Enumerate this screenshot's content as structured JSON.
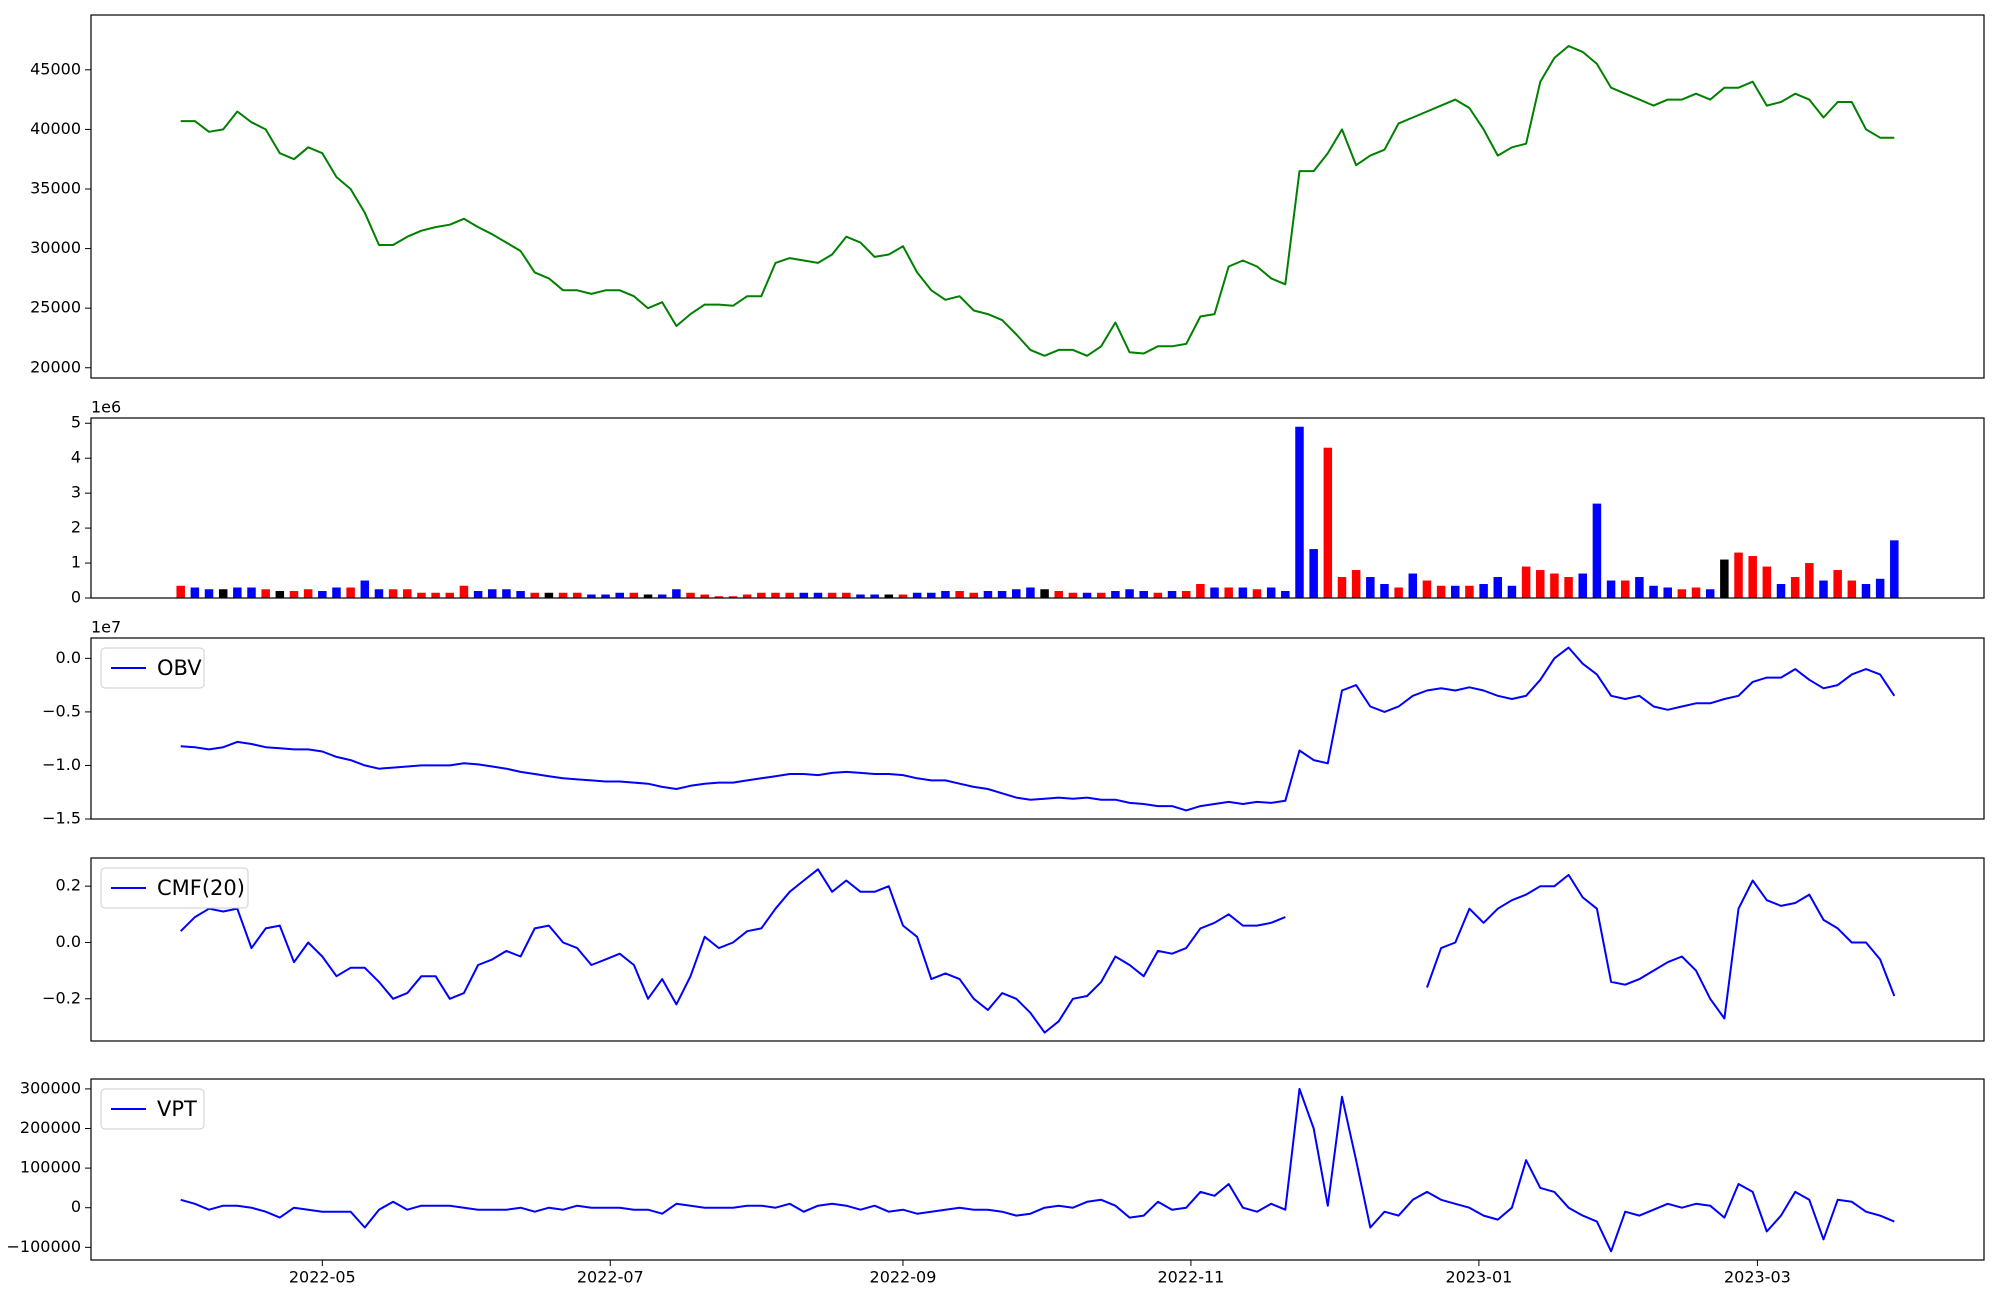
{
  "chart_data": [
    {
      "type": "line",
      "x": [
        "2022-04-01",
        "2022-04-04",
        "2022-04-07",
        "2022-04-10",
        "2022-04-13",
        "2022-04-16",
        "2022-04-19",
        "2022-04-22",
        "2022-04-25",
        "2022-04-28",
        "2022-05-01",
        "2022-05-04",
        "2022-05-07",
        "2022-05-10",
        "2022-05-13",
        "2022-05-16",
        "2022-05-19",
        "2022-05-22",
        "2022-05-25",
        "2022-05-28",
        "2022-05-31",
        "2022-06-03",
        "2022-06-06",
        "2022-06-09",
        "2022-06-12",
        "2022-06-15",
        "2022-06-18",
        "2022-06-21",
        "2022-06-24",
        "2022-06-27",
        "2022-06-30",
        "2022-07-03",
        "2022-07-06",
        "2022-07-09",
        "2022-07-12",
        "2022-07-15",
        "2022-07-18",
        "2022-07-21",
        "2022-07-24",
        "2022-07-27",
        "2022-07-30",
        "2022-08-02",
        "2022-08-05",
        "2022-08-08",
        "2022-08-11",
        "2022-08-14",
        "2022-08-17",
        "2022-08-20",
        "2022-08-23",
        "2022-08-26",
        "2022-08-29",
        "2022-09-01",
        "2022-09-04",
        "2022-09-07",
        "2022-09-10",
        "2022-09-13",
        "2022-09-16",
        "2022-09-19",
        "2022-09-22",
        "2022-09-25",
        "2022-09-28",
        "2022-10-01",
        "2022-10-04",
        "2022-10-07",
        "2022-10-10",
        "2022-10-13",
        "2022-10-16",
        "2022-10-19",
        "2022-10-22",
        "2022-10-25",
        "2022-10-28",
        "2022-10-31",
        "2022-11-03",
        "2022-11-06",
        "2022-11-09",
        "2022-11-12",
        "2022-11-15",
        "2022-11-18",
        "2022-11-21",
        "2022-11-24",
        "2022-11-27",
        "2022-11-30",
        "2022-12-03",
        "2022-12-06",
        "2022-12-09",
        "2022-12-12",
        "2022-12-15",
        "2022-12-18",
        "2022-12-21",
        "2022-12-24",
        "2022-12-27",
        "2022-12-30",
        "2023-01-02",
        "2023-01-05",
        "2023-01-08",
        "2023-01-11",
        "2023-01-14",
        "2023-01-17",
        "2023-01-20",
        "2023-01-23",
        "2023-01-26",
        "2023-01-29",
        "2023-02-01",
        "2023-02-04",
        "2023-02-07",
        "2023-02-10",
        "2023-02-13",
        "2023-02-16",
        "2023-02-19",
        "2023-02-22",
        "2023-02-25",
        "2023-02-28",
        "2023-03-03",
        "2023-03-06",
        "2023-03-09",
        "2023-03-12",
        "2023-03-15",
        "2023-03-18",
        "2023-03-21",
        "2023-03-24",
        "2023-03-27",
        "2023-03-30"
      ],
      "xlim": [
        "2022-03-13",
        "2023-04-18"
      ],
      "series": [
        {
          "color": "green",
          "values": [
            40700,
            40700,
            39800,
            40000,
            41500,
            40600,
            40000,
            38000,
            37500,
            38500,
            38000,
            36000,
            35000,
            33000,
            30300,
            30300,
            31000,
            31500,
            31800,
            32000,
            32500,
            31800,
            31200,
            30500,
            29800,
            28000,
            27500,
            26500,
            26500,
            26200,
            26500,
            26500,
            26000,
            25000,
            25500,
            23500,
            24500,
            25300,
            25300,
            25200,
            26000,
            26000,
            28800,
            29200,
            29000,
            28800,
            29500,
            31000,
            30500,
            29300,
            29500,
            30200,
            28000,
            26500,
            25700,
            26000,
            24800,
            24500,
            24000,
            22800,
            21500,
            21000,
            21500,
            21500,
            21000,
            21800,
            23800,
            21300,
            21200,
            21800,
            21800,
            22000,
            24300,
            24500,
            28500,
            29000,
            28500,
            27500,
            27000,
            36500,
            36500,
            38000,
            40000,
            37000,
            37800,
            38300,
            40500,
            41000,
            41500,
            42000,
            42500,
            41800,
            40000,
            37800,
            38500,
            38800,
            44000,
            46000,
            47000,
            46500,
            45500,
            43500,
            43000,
            42500,
            42000,
            42500,
            42500,
            43000,
            42500,
            43500,
            43500,
            44000,
            42000,
            42300,
            43000,
            42500,
            41000,
            42300,
            42300,
            40000,
            39300,
            39300
          ]
        }
      ],
      "ylim": [
        19140,
        49600
      ],
      "yticks": [
        20000,
        25000,
        30000,
        35000,
        40000,
        45000
      ]
    },
    {
      "type": "bar",
      "offset_text": "1e6",
      "values": [
        0.35,
        0.3,
        0.25,
        0.25,
        0.3,
        0.3,
        0.25,
        0.2,
        0.2,
        0.25,
        0.2,
        0.3,
        0.3,
        0.5,
        0.25,
        0.25,
        0.25,
        0.15,
        0.15,
        0.15,
        0.35,
        0.2,
        0.25,
        0.25,
        0.2,
        0.15,
        0.15,
        0.15,
        0.15,
        0.1,
        0.1,
        0.15,
        0.15,
        0.1,
        0.1,
        0.25,
        0.15,
        0.1,
        0.05,
        0.05,
        0.1,
        0.15,
        0.15,
        0.15,
        0.15,
        0.15,
        0.15,
        0.15,
        0.1,
        0.1,
        0.1,
        0.1,
        0.15,
        0.15,
        0.2,
        0.2,
        0.15,
        0.2,
        0.2,
        0.25,
        0.3,
        0.25,
        0.2,
        0.15,
        0.15,
        0.15,
        0.2,
        0.25,
        0.2,
        0.15,
        0.2,
        0.2,
        0.4,
        0.3,
        0.3,
        0.3,
        0.25,
        0.3,
        0.2,
        4.9,
        1.4,
        4.3,
        0.6,
        0.8,
        0.6,
        0.4,
        0.3,
        0.7,
        0.5,
        0.35,
        0.35,
        0.35,
        0.4,
        0.6,
        0.35,
        0.9,
        0.8,
        0.7,
        0.6,
        0.7,
        2.7,
        0.5,
        0.5,
        0.6,
        0.35,
        0.3,
        0.25,
        0.3,
        0.25,
        1.1,
        1.3,
        1.2,
        0.9,
        0.4,
        0.6,
        1.0,
        0.5,
        0.8,
        0.5,
        0.4,
        0.55,
        1.65
      ],
      "colors": [
        "red",
        "blue",
        "blue",
        "black",
        "blue",
        "blue",
        "red",
        "black",
        "red",
        "red",
        "blue",
        "blue",
        "red",
        "blue",
        "blue",
        "red",
        "red",
        "red",
        "red",
        "red",
        "red",
        "blue",
        "blue",
        "blue",
        "blue",
        "red",
        "black",
        "red",
        "red",
        "blue",
        "blue",
        "blue",
        "red",
        "black",
        "blue",
        "blue",
        "red",
        "red",
        "red",
        "red",
        "red",
        "red",
        "red",
        "red",
        "blue",
        "blue",
        "red",
        "red",
        "blue",
        "blue",
        "black",
        "red",
        "blue",
        "blue",
        "blue",
        "red",
        "red",
        "blue",
        "blue",
        "blue",
        "blue",
        "black",
        "red",
        "red",
        "blue",
        "red",
        "blue",
        "blue",
        "blue",
        "red",
        "blue",
        "red",
        "red",
        "blue",
        "red",
        "blue",
        "red",
        "blue",
        "blue",
        "blue",
        "blue",
        "red",
        "red",
        "red",
        "blue",
        "blue",
        "red",
        "blue",
        "red",
        "red",
        "blue",
        "red",
        "blue",
        "blue",
        "blue",
        "red",
        "red",
        "red",
        "red",
        "blue",
        "blue",
        "blue",
        "red",
        "blue",
        "blue",
        "blue",
        "red",
        "red",
        "blue",
        "black",
        "red",
        "red",
        "red",
        "blue",
        "red",
        "red",
        "blue",
        "red",
        "red",
        "blue",
        "blue",
        "blue",
        "blue"
      ],
      "ylim": [
        0,
        5.15
      ],
      "yticks": [
        0,
        1,
        2,
        3,
        4,
        5
      ]
    },
    {
      "type": "line",
      "offset_text": "1e7",
      "legend": "upper left",
      "series": [
        {
          "name": "OBV",
          "color": "blue",
          "values": [
            -0.82,
            -0.83,
            -0.85,
            -0.83,
            -0.78,
            -0.8,
            -0.83,
            -0.84,
            -0.85,
            -0.85,
            -0.87,
            -0.92,
            -0.95,
            -1.0,
            -1.03,
            -1.02,
            -1.01,
            -1.0,
            -1.0,
            -1.0,
            -0.98,
            -0.99,
            -1.01,
            -1.03,
            -1.06,
            -1.08,
            -1.1,
            -1.12,
            -1.13,
            -1.14,
            -1.15,
            -1.15,
            -1.16,
            -1.17,
            -1.2,
            -1.22,
            -1.19,
            -1.17,
            -1.16,
            -1.16,
            -1.14,
            -1.12,
            -1.1,
            -1.08,
            -1.08,
            -1.09,
            -1.07,
            -1.06,
            -1.07,
            -1.08,
            -1.08,
            -1.09,
            -1.12,
            -1.14,
            -1.14,
            -1.17,
            -1.2,
            -1.22,
            -1.26,
            -1.3,
            -1.32,
            -1.31,
            -1.3,
            -1.31,
            -1.3,
            -1.32,
            -1.32,
            -1.35,
            -1.36,
            -1.38,
            -1.38,
            -1.42,
            -1.38,
            -1.36,
            -1.34,
            -1.36,
            -1.34,
            -1.35,
            -1.33,
            -0.86,
            -0.95,
            -0.98,
            -0.3,
            -0.25,
            -0.45,
            -0.5,
            -0.45,
            -0.35,
            -0.3,
            -0.28,
            -0.3,
            -0.27,
            -0.3,
            -0.35,
            -0.38,
            -0.35,
            -0.2,
            0.0,
            0.1,
            -0.05,
            -0.15,
            -0.35,
            -0.38,
            -0.35,
            -0.45,
            -0.48,
            -0.45,
            -0.42,
            -0.42,
            -0.38,
            -0.35,
            -0.22,
            -0.18,
            -0.18,
            -0.1,
            -0.2,
            -0.28,
            -0.25,
            -0.15,
            -0.1,
            -0.15,
            -0.35
          ]
        }
      ],
      "ylim": [
        -1.5,
        0.19
      ],
      "yticks": [
        {
          "value": -1.5,
          "label": "−1.5"
        },
        {
          "value": -1.0,
          "label": "−1.0"
        },
        {
          "value": -0.5,
          "label": "−0.5"
        },
        {
          "value": 0.0,
          "label": "0.0"
        }
      ]
    },
    {
      "type": "line",
      "legend": "upper left",
      "series": [
        {
          "name": "CMF(20)",
          "color": "blue",
          "values": [
            0.04,
            0.09,
            0.12,
            0.11,
            0.12,
            -0.02,
            0.05,
            0.06,
            -0.07,
            0.0,
            -0.05,
            -0.12,
            -0.09,
            -0.09,
            -0.14,
            -0.2,
            -0.18,
            -0.12,
            -0.12,
            -0.2,
            -0.18,
            -0.08,
            -0.06,
            -0.03,
            -0.05,
            0.05,
            0.06,
            0.0,
            -0.02,
            -0.08,
            -0.06,
            -0.04,
            -0.08,
            -0.2,
            -0.13,
            -0.22,
            -0.12,
            0.02,
            -0.02,
            0.0,
            0.04,
            0.05,
            0.12,
            0.18,
            0.22,
            0.26,
            0.18,
            0.22,
            0.18,
            0.18,
            0.2,
            0.06,
            0.02,
            -0.13,
            -0.11,
            -0.13,
            -0.2,
            -0.24,
            -0.18,
            -0.2,
            -0.25,
            -0.32,
            -0.28,
            -0.2,
            -0.19,
            -0.14,
            -0.05,
            -0.08,
            -0.12,
            -0.03,
            -0.04,
            -0.02,
            0.05,
            0.07,
            0.1,
            0.06,
            0.06,
            0.07,
            0.09,
            null,
            null,
            null,
            null,
            null,
            null,
            null,
            null,
            null,
            -0.16,
            -0.02,
            0.0,
            0.12,
            0.07,
            0.12,
            0.15,
            0.17,
            0.2,
            0.2,
            0.24,
            0.16,
            0.12,
            -0.14,
            -0.15,
            -0.13,
            -0.1,
            -0.07,
            -0.05,
            -0.1,
            -0.2,
            -0.27,
            0.12,
            0.22,
            0.15,
            0.13,
            0.14,
            0.17,
            0.08,
            0.05,
            0.0,
            0.0,
            -0.06,
            -0.19
          ]
        }
      ],
      "ylim": [
        -0.35,
        0.3
      ],
      "yticks": [
        {
          "value": -0.2,
          "label": "−0.2"
        },
        {
          "value": 0.0,
          "label": "0.0"
        },
        {
          "value": 0.2,
          "label": "0.2"
        }
      ]
    },
    {
      "type": "line",
      "legend": "upper left",
      "series": [
        {
          "name": "VPT",
          "color": "blue",
          "values": [
            20000,
            10000,
            -5000,
            5000,
            5000,
            0,
            -10000,
            -25000,
            0,
            -5000,
            -10000,
            -10000,
            -10000,
            -50000,
            -5000,
            15000,
            -5000,
            5000,
            5000,
            5000,
            0,
            -5000,
            -5000,
            -5000,
            0,
            -10000,
            0,
            -5000,
            5000,
            0,
            0,
            0,
            -5000,
            -5000,
            -15000,
            10000,
            5000,
            0,
            0,
            0,
            5000,
            5000,
            0,
            10000,
            -10000,
            5000,
            10000,
            5000,
            -5000,
            5000,
            -10000,
            -5000,
            -15000,
            -10000,
            -5000,
            0,
            -5000,
            -5000,
            -10000,
            -20000,
            -15000,
            0,
            5000,
            0,
            15000,
            20000,
            5000,
            -25000,
            -20000,
            15000,
            -5000,
            0,
            40000,
            30000,
            60000,
            0,
            -10000,
            10000,
            -5000,
            300000,
            200000,
            5000,
            280000,
            120000,
            -50000,
            -10000,
            -20000,
            20000,
            40000,
            20000,
            10000,
            0,
            -20000,
            -30000,
            0,
            120000,
            50000,
            40000,
            0,
            -20000,
            -35000,
            -110000,
            -10000,
            -20000,
            -5000,
            10000,
            0,
            10000,
            5000,
            -25000,
            60000,
            40000,
            -60000,
            -20000,
            40000,
            20000,
            -80000,
            20000,
            15000,
            -10000,
            -20000,
            -35000
          ]
        }
      ],
      "ylim": [
        -132000,
        325000
      ],
      "yticks": [
        {
          "value": -100000,
          "label": "−100000"
        },
        0,
        100000,
        200000,
        300000
      ],
      "xticks": [
        {
          "value": "2022-05-01",
          "label": "2022-05"
        },
        {
          "value": "2022-07-01",
          "label": "2022-07"
        },
        {
          "value": "2022-09-01",
          "label": "2022-09"
        },
        {
          "value": "2022-11-01",
          "label": "2022-11"
        },
        {
          "value": "2023-01-01",
          "label": "2023-01"
        },
        {
          "value": "2023-03-01",
          "label": "2023-03"
        }
      ]
    }
  ]
}
